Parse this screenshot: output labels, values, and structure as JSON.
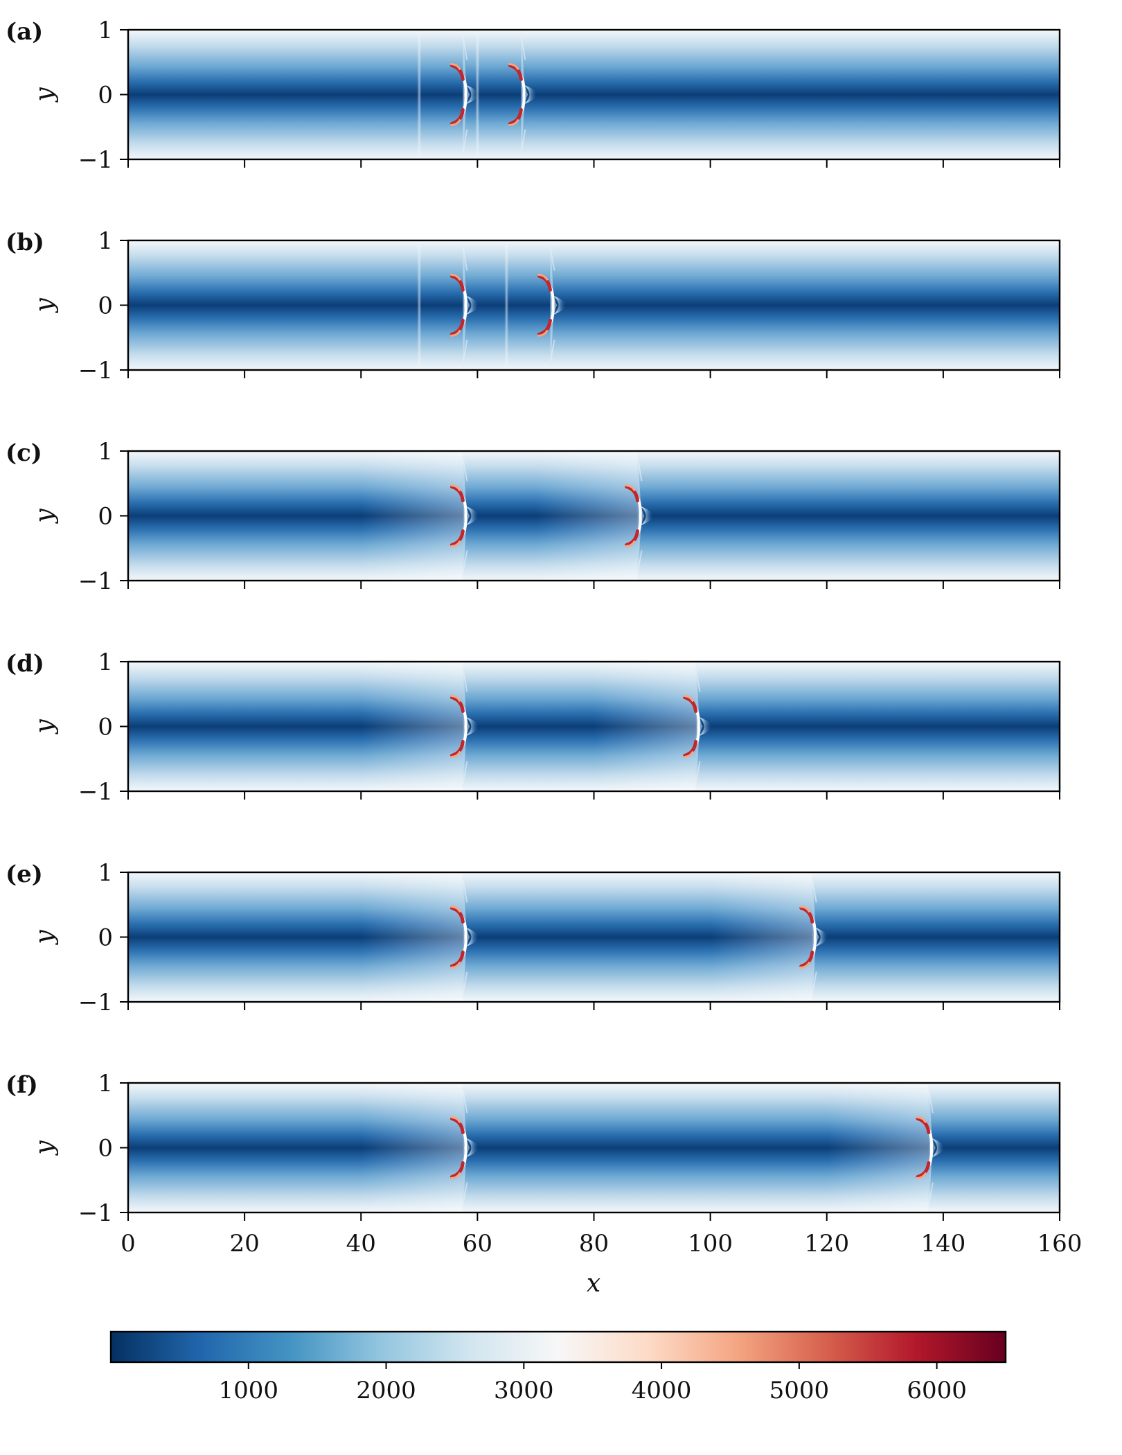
{
  "chart_data": {
    "type": "heatmap",
    "description_axes": {
      "xlabel": "x",
      "ylabel": "y",
      "xlim": [
        0,
        160
      ],
      "ylim": [
        -1,
        1
      ],
      "xticks": [
        0,
        20,
        40,
        60,
        80,
        100,
        120,
        140,
        160
      ],
      "yticks": [
        -1,
        0,
        1
      ],
      "ytick_labels": [
        "−1",
        "0",
        "1"
      ]
    },
    "colorbar": {
      "cmap": "RdBu_r",
      "vmin": 0,
      "vmax": 6500,
      "ticks": [
        1000,
        2000,
        3000,
        4000,
        5000,
        6000
      ],
      "tick_labels": [
        "1000",
        "2000",
        "3000",
        "4000",
        "5000",
        "6000"
      ],
      "colors": [
        "#053061",
        "#2166ac",
        "#4393c3",
        "#92c5de",
        "#d1e5f0",
        "#f7f7f7",
        "#fddbc7",
        "#f4a582",
        "#d6604d",
        "#b2182b",
        "#67001f"
      ]
    },
    "panels": [
      {
        "label": "(a)",
        "fronts_x": [
          57.5,
          67.5
        ],
        "steps_x": [
          50,
          60
        ]
      },
      {
        "label": "(b)",
        "fronts_x": [
          57.5,
          72.5
        ],
        "steps_x": [
          50,
          65
        ]
      },
      {
        "label": "(c)",
        "fronts_x": [
          57.5,
          87.5
        ],
        "steps_x": [],
        "fade_from_x": [
          40,
          70
        ]
      },
      {
        "label": "(d)",
        "fronts_x": [
          57.5,
          97.5
        ],
        "steps_x": [],
        "fade_from_x": [
          40,
          80
        ]
      },
      {
        "label": "(e)",
        "fronts_x": [
          57.5,
          117.5
        ],
        "steps_x": [],
        "fade_from_x": [
          40,
          100
        ]
      },
      {
        "label": "(f)",
        "fronts_x": [
          57.5,
          137.5
        ],
        "steps_x": [],
        "fade_from_x": [
          40,
          120
        ]
      }
    ]
  }
}
